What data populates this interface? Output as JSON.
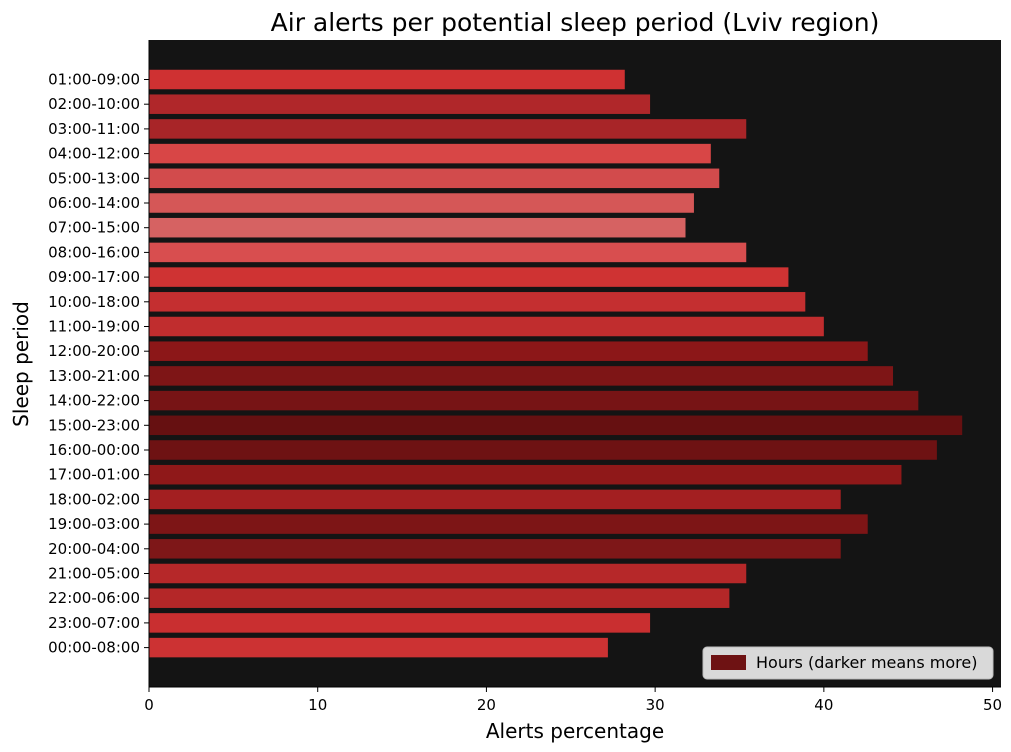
{
  "chart_data": {
    "type": "bar",
    "orientation": "horizontal",
    "title": "Air alerts per potential sleep period (Lviv region)",
    "xlabel": "Alerts percentage",
    "ylabel": "Sleep period",
    "xlim": [
      0,
      50.5
    ],
    "xticks": [
      0,
      10,
      20,
      30,
      40,
      50
    ],
    "categories": [
      "01:00-09:00",
      "02:00-10:00",
      "03:00-11:00",
      "04:00-12:00",
      "05:00-13:00",
      "06:00-14:00",
      "07:00-15:00",
      "08:00-16:00",
      "09:00-17:00",
      "10:00-18:00",
      "11:00-19:00",
      "12:00-20:00",
      "13:00-21:00",
      "14:00-22:00",
      "15:00-23:00",
      "16:00-00:00",
      "17:00-01:00",
      "18:00-02:00",
      "19:00-03:00",
      "20:00-04:00",
      "21:00-05:00",
      "22:00-06:00",
      "23:00-07:00",
      "00:00-08:00"
    ],
    "values": [
      28.2,
      29.7,
      35.4,
      33.3,
      33.8,
      32.3,
      31.8,
      35.4,
      37.9,
      38.9,
      40.0,
      42.6,
      44.1,
      45.6,
      48.2,
      46.7,
      44.6,
      41.0,
      42.6,
      41.0,
      35.4,
      34.4,
      29.7,
      27.2
    ],
    "colors": [
      "#cf3132",
      "#b0272a",
      "#a82528",
      "#d84646",
      "#d24b4c",
      "#d55757",
      "#d66262",
      "#d84e4f",
      "#cf3333",
      "#c42f30",
      "#c02d2e",
      "#8c1718",
      "#7e1516",
      "#771415",
      "#661011",
      "#6e1213",
      "#8f1819",
      "#a31f21",
      "#7d1516",
      "#7e1718",
      "#b62829",
      "#b42728",
      "#c92f30",
      "#cc3233"
    ],
    "background": "#141414",
    "grid": false,
    "legend": {
      "label": "Hours (darker means more)",
      "color": "#6e1213",
      "position": "bottom-right"
    }
  }
}
